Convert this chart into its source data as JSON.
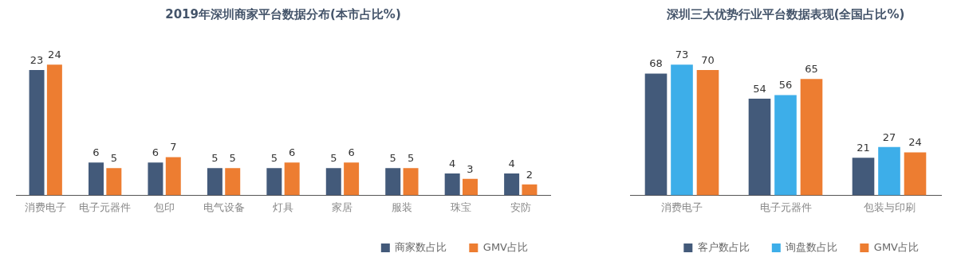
{
  "chart_data": [
    {
      "type": "bar",
      "title": "2019年深圳商家平台数据分布(本市占比%)",
      "categories": [
        "消费电子",
        "电子元器件",
        "包印",
        "电气设备",
        "灯具",
        "家居",
        "服装",
        "珠宝",
        "安防"
      ],
      "series": [
        {
          "name": "商家数占比",
          "color": "#435a7a",
          "values": [
            23,
            6,
            6,
            5,
            5,
            5,
            5,
            4,
            4
          ]
        },
        {
          "name": "GMV占比",
          "color": "#ed7d31",
          "values": [
            24,
            5,
            7,
            5,
            6,
            6,
            5,
            3,
            2
          ]
        }
      ],
      "data_labels": true,
      "legend": "bottom right",
      "grid": false
    },
    {
      "type": "bar",
      "title": "深圳三大优势行业平台数据表现(全国占比%)",
      "categories": [
        "消费电子",
        "电子元器件",
        "包装与印刷"
      ],
      "series": [
        {
          "name": "客户数占比",
          "color": "#435a7a",
          "values": [
            68,
            54,
            21
          ]
        },
        {
          "name": "询盘数占比",
          "color": "#3daee9",
          "values": [
            73,
            56,
            27
          ]
        },
        {
          "name": "GMV占比",
          "color": "#ed7d31",
          "values": [
            70,
            65,
            24
          ]
        }
      ],
      "data_labels": true,
      "legend": "bottom right",
      "grid": false
    }
  ]
}
